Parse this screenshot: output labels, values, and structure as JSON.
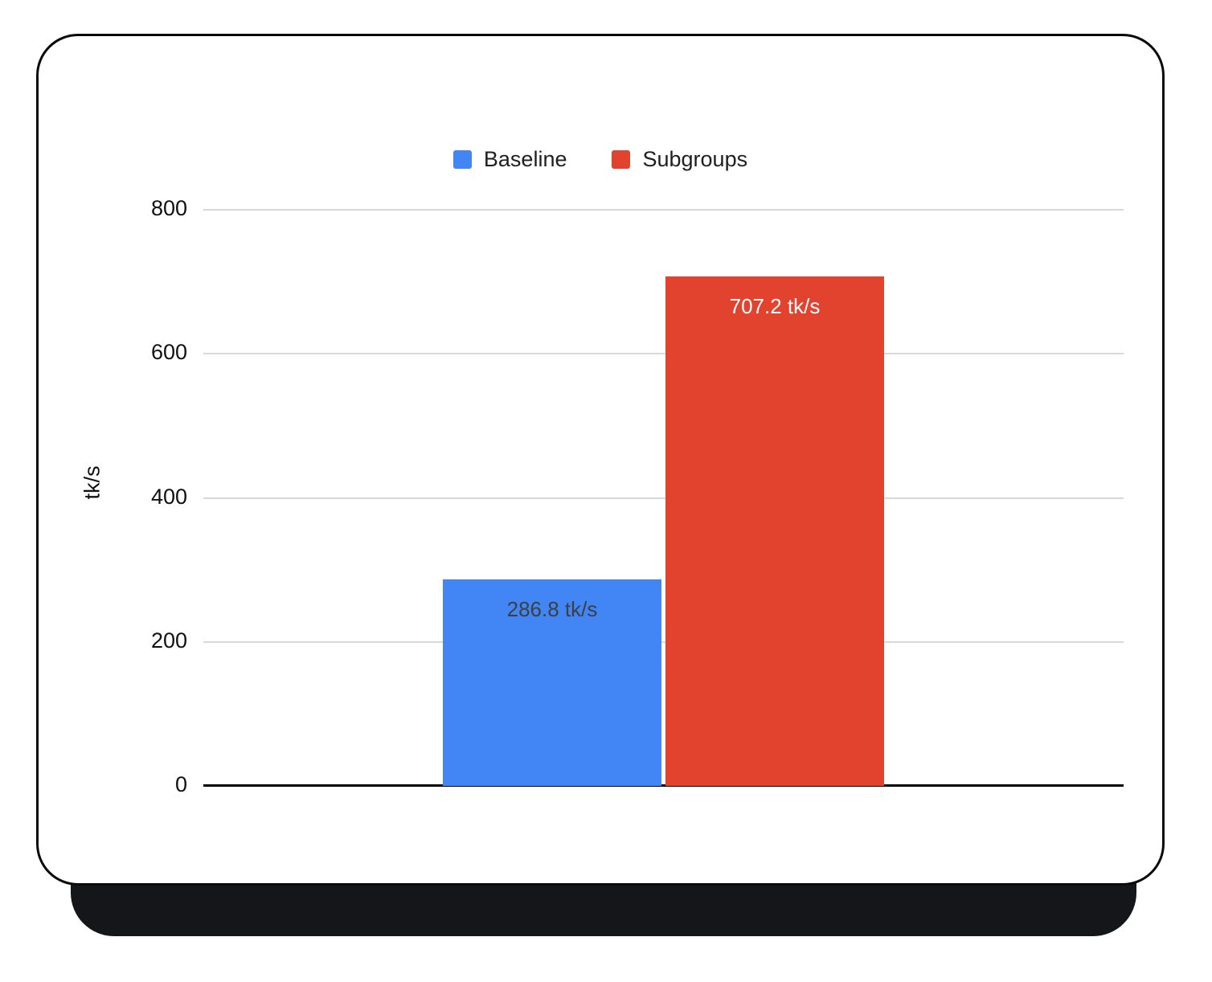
{
  "chart_data": {
    "type": "bar",
    "title": "",
    "xlabel": "",
    "ylabel": "tk/s",
    "ylim": [
      0,
      800
    ],
    "yticks": [
      0,
      200,
      400,
      600,
      800
    ],
    "grid": true,
    "legend_position": "top",
    "categories": [
      "Baseline",
      "Subgroups"
    ],
    "series": [
      {
        "name": "Baseline",
        "value": 286.8,
        "data_label": "286.8 tk/s",
        "color": "#4285f4",
        "label_color": "#3c4043"
      },
      {
        "name": "Subgroups",
        "value": 707.2,
        "data_label": "707.2 tk/s",
        "color": "#e2432e",
        "label_color": "#ffffff"
      }
    ]
  },
  "colors": {
    "card_background": "#ffffff",
    "card_border": "#0a0a0a",
    "card_shadow": "#15161a",
    "gridline": "#d9d9d9",
    "axis": "#000000",
    "text": "#1f1f1f"
  }
}
